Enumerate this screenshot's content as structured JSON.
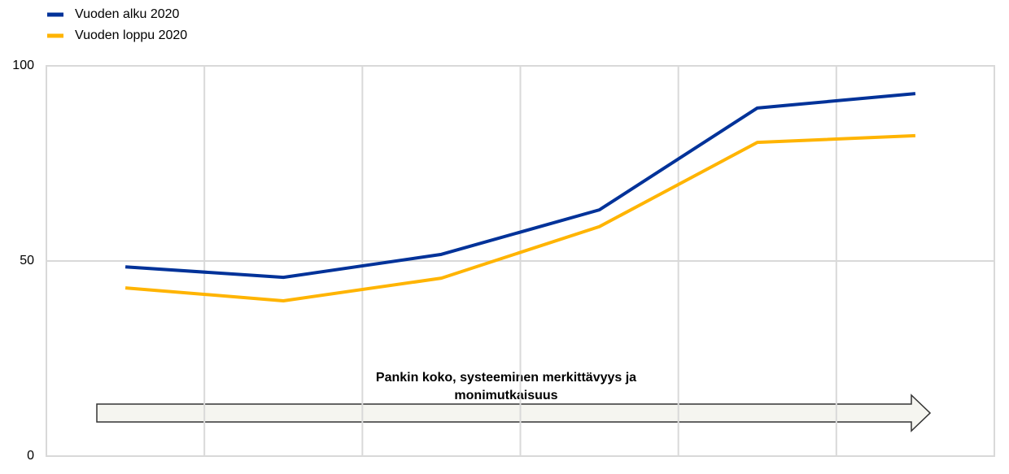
{
  "chart_data": {
    "type": "line",
    "categories": [
      null,
      null,
      null,
      null,
      null,
      null
    ],
    "series": [
      {
        "name": "Vuoden alku 2020",
        "color": "#003299",
        "values": [
          48.5,
          45.8,
          51.7,
          63.1,
          89.2,
          92.9
        ]
      },
      {
        "name": "Vuoden loppu 2020",
        "color": "#ffb400",
        "values": [
          43.1,
          39.8,
          45.6,
          58.8,
          80.4,
          82.1
        ]
      }
    ],
    "ylim": [
      0,
      100
    ],
    "yticks": [
      0,
      50,
      100
    ],
    "grid": true,
    "legend": "top-left",
    "annotation": [
      "Pankin koko, systeeminen merkittävyys ja",
      "monimutkaisuus"
    ]
  }
}
